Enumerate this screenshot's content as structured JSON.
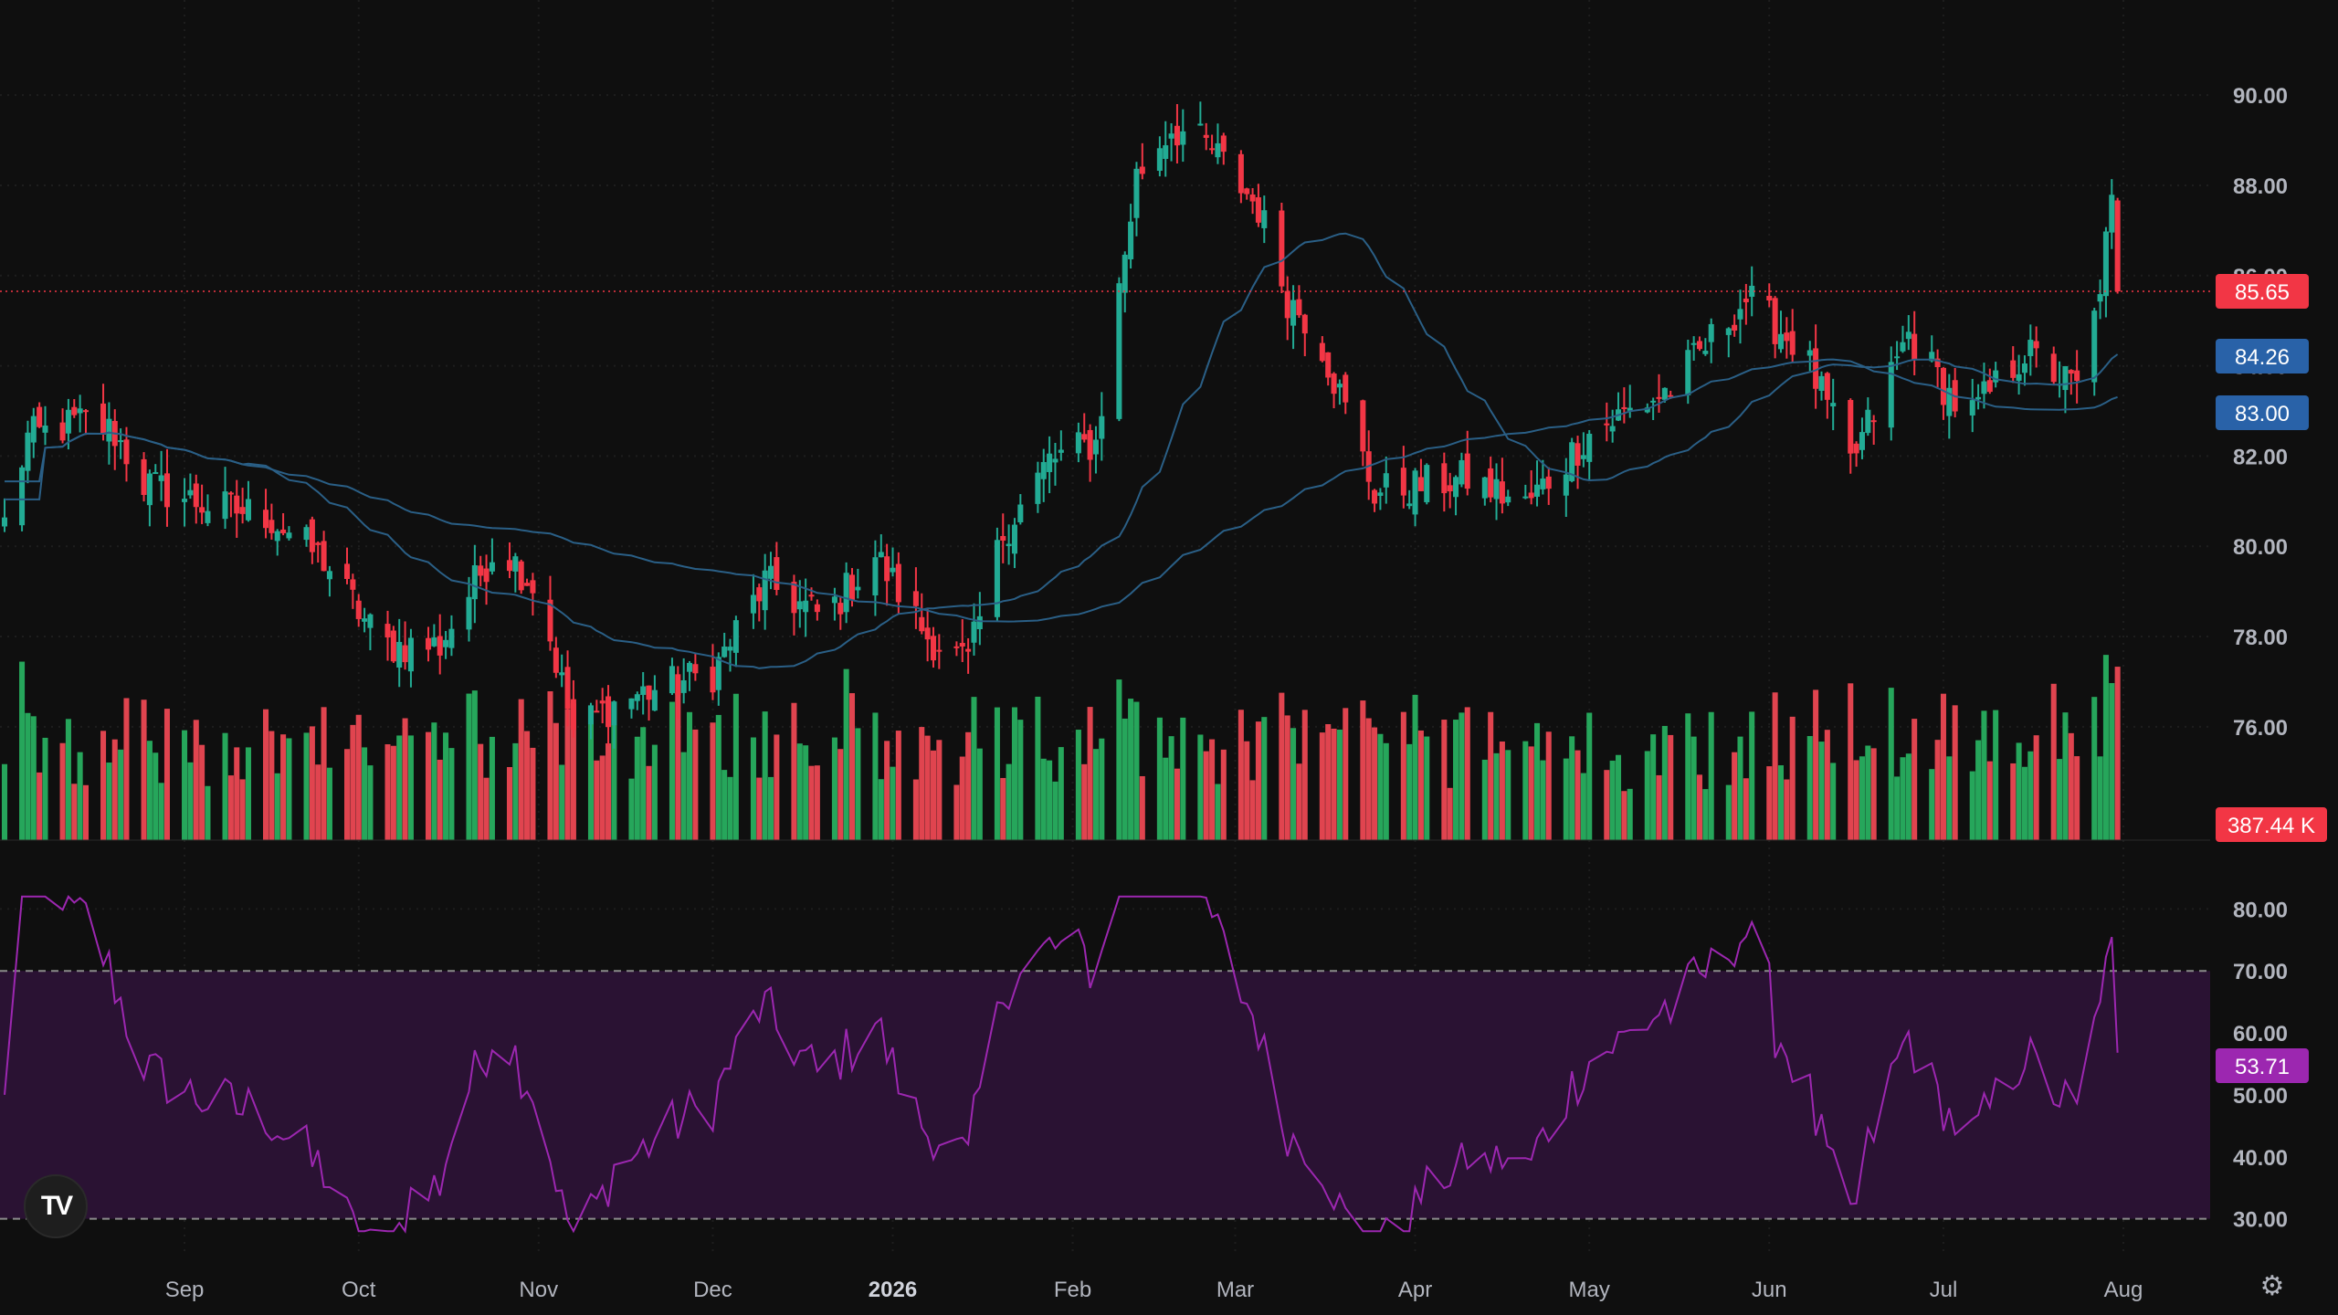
{
  "colors": {
    "background": "#0f0f0f",
    "up": "#22ab94",
    "down": "#f23645",
    "volume_up": "#26a65b",
    "volume_down": "#e0444f",
    "ma_fast": "#2a5f86",
    "ma_slow": "#2a5f86",
    "rsi_line": "#9c27b0",
    "rsi_band": "#2a1233",
    "price_tag": "#f23645",
    "ma_tag": "#2962a8",
    "rsi_tag": "#9c27b0"
  },
  "chart_data": [
    {
      "type": "candlestick",
      "title": "",
      "ylim": [
        74.5,
        91.5
      ],
      "y_ticks": [
        "90.00",
        "88.00",
        "86.00",
        "84.00",
        "82.00",
        "80.00",
        "78.00",
        "76.00"
      ],
      "x_labels": [
        "Sep",
        "Oct",
        "Nov",
        "Dec",
        "2026",
        "Feb",
        "Mar",
        "Apr",
        "May",
        "Jun",
        "Jul",
        "Aug"
      ],
      "x_label_months": [
        1,
        2,
        3,
        4,
        5,
        6,
        7,
        8,
        9,
        10,
        11,
        12
      ],
      "x_start": "2025-08-01",
      "x_end": "2026-08-01",
      "last_price": "85.65",
      "ma_fast_last": "84.26",
      "ma_slow_last": "83.00",
      "volume_last": "387.44 K",
      "anchors": [
        [
          "2025-08-01",
          80.5
        ],
        [
          "2025-08-05",
          82.4
        ],
        [
          "2025-08-15",
          82.8
        ],
        [
          "2025-08-20",
          82.5
        ],
        [
          "2025-08-25",
          81.4
        ],
        [
          "2025-09-05",
          80.9
        ],
        [
          "2025-09-15",
          80.7
        ],
        [
          "2025-09-25",
          79.7
        ],
        [
          "2025-10-05",
          77.8
        ],
        [
          "2025-10-15",
          77.8
        ],
        [
          "2025-10-25",
          80.1
        ],
        [
          "2025-11-01",
          79.0
        ],
        [
          "2025-11-07",
          75.9
        ],
        [
          "2025-11-15",
          76.6
        ],
        [
          "2025-12-01",
          77.2
        ],
        [
          "2025-12-10",
          79.2
        ],
        [
          "2025-12-20",
          78.4
        ],
        [
          "2025-12-29",
          79.8
        ],
        [
          "2026-01-07",
          78.0
        ],
        [
          "2026-01-14",
          77.4
        ],
        [
          "2026-01-20",
          80.3
        ],
        [
          "2026-01-28",
          81.9
        ],
        [
          "2026-02-05",
          82.3
        ],
        [
          "2026-02-12",
          88.2
        ],
        [
          "2026-02-18",
          89.3
        ],
        [
          "2026-02-25",
          88.8
        ],
        [
          "2026-03-05",
          87.5
        ],
        [
          "2026-03-10",
          85.5
        ],
        [
          "2026-03-15",
          84.8
        ],
        [
          "2026-03-25",
          81.2
        ],
        [
          "2026-04-10",
          81.5
        ],
        [
          "2026-04-20",
          80.9
        ],
        [
          "2026-05-01",
          82.5
        ],
        [
          "2026-05-15",
          83.5
        ],
        [
          "2026-05-28",
          85.5
        ],
        [
          "2026-06-07",
          84.3
        ],
        [
          "2026-06-15",
          81.8
        ],
        [
          "2026-06-25",
          84.7
        ],
        [
          "2026-07-05",
          82.8
        ],
        [
          "2026-07-15",
          84.3
        ],
        [
          "2026-07-25",
          83.4
        ],
        [
          "2026-07-30",
          87.5
        ],
        [
          "2026-08-01",
          85.65
        ]
      ]
    },
    {
      "type": "line",
      "title": "",
      "ylim": [
        27.0,
        83.0
      ],
      "y_ticks": [
        "80.00",
        "70.00",
        "60.00",
        "50.00",
        "40.00",
        "30.00"
      ],
      "overbought": 70,
      "oversold": 30,
      "last_value": "53.71"
    }
  ]
}
